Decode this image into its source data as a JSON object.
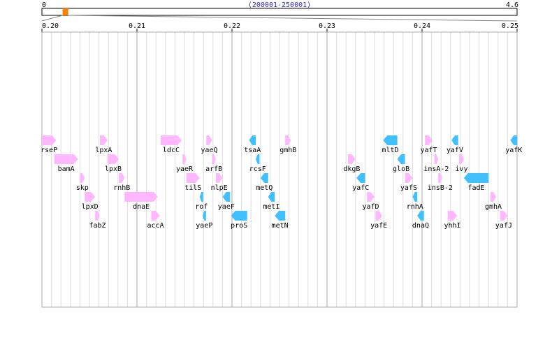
{
  "overview": {
    "start_label": "0",
    "end_label": "4.6",
    "range_label": "(200001-250001)",
    "min": 0,
    "max": 4.6,
    "highlight_start": 0.200001,
    "highlight_end": 0.250001,
    "highlight_color": "#ff8000"
  },
  "axis": {
    "min": 0.2,
    "max": 0.25,
    "major_ticks": [
      "0.20",
      "0.21",
      "0.22",
      "0.23",
      "0.24",
      "0.25"
    ],
    "minor_step": 0.001
  },
  "colors": {
    "forward": "#ffb8ff",
    "reverse": "#40c0ff",
    "grid_minor": "#dddddd",
    "grid_major": "#aaaaaa",
    "border": "#aaaaaa"
  },
  "genes": [
    {
      "name": "rseP",
      "start": 0.2,
      "end": 0.2015,
      "strand": "+",
      "row": 0
    },
    {
      "name": "bamA",
      "start": 0.2013,
      "end": 0.2038,
      "strand": "+",
      "row": 1
    },
    {
      "name": "skp",
      "start": 0.204,
      "end": 0.2045,
      "strand": "+",
      "row": 2
    },
    {
      "name": "lpxD",
      "start": 0.2045,
      "end": 0.2056,
      "strand": "+",
      "row": 3
    },
    {
      "name": "fabZ",
      "start": 0.2056,
      "end": 0.2061,
      "strand": "+",
      "row": 4
    },
    {
      "name": "lpxA",
      "start": 0.2061,
      "end": 0.2069,
      "strand": "+",
      "row": 0
    },
    {
      "name": "lpxB",
      "start": 0.2069,
      "end": 0.2081,
      "strand": "+",
      "row": 1
    },
    {
      "name": "rnhB",
      "start": 0.2081,
      "end": 0.2087,
      "strand": "+",
      "row": 2
    },
    {
      "name": "dnaE",
      "start": 0.2087,
      "end": 0.2122,
      "strand": "+",
      "row": 3
    },
    {
      "name": "accA",
      "start": 0.2115,
      "end": 0.2124,
      "strand": "+",
      "row": 4
    },
    {
      "name": "ldcC",
      "start": 0.2125,
      "end": 0.2147,
      "strand": "+",
      "row": 0
    },
    {
      "name": "yaeR",
      "start": 0.2148,
      "end": 0.2152,
      "strand": "+",
      "row": 1
    },
    {
      "name": "tilS",
      "start": 0.2152,
      "end": 0.2166,
      "strand": "+",
      "row": 2
    },
    {
      "name": "rof",
      "start": 0.2166,
      "end": 0.2169,
      "strand": "-",
      "row": 3
    },
    {
      "name": "yaeP",
      "start": 0.2169,
      "end": 0.2172,
      "strand": "-",
      "row": 4
    },
    {
      "name": "yaeQ",
      "start": 0.2173,
      "end": 0.2179,
      "strand": "+",
      "row": 0
    },
    {
      "name": "arfB",
      "start": 0.2179,
      "end": 0.2183,
      "strand": "+",
      "row": 1
    },
    {
      "name": "nlpE",
      "start": 0.2183,
      "end": 0.219,
      "strand": "+",
      "row": 2
    },
    {
      "name": "yaeF",
      "start": 0.219,
      "end": 0.2198,
      "strand": "-",
      "row": 3
    },
    {
      "name": "proS",
      "start": 0.2199,
      "end": 0.2216,
      "strand": "-",
      "row": 4
    },
    {
      "name": "tsaA",
      "start": 0.2218,
      "end": 0.2225,
      "strand": "-",
      "row": 0
    },
    {
      "name": "rcsF",
      "start": 0.2225,
      "end": 0.2229,
      "strand": "-",
      "row": 1
    },
    {
      "name": "metQ",
      "start": 0.223,
      "end": 0.2238,
      "strand": "-",
      "row": 2
    },
    {
      "name": "metI",
      "start": 0.2238,
      "end": 0.2245,
      "strand": "-",
      "row": 3
    },
    {
      "name": "metN",
      "start": 0.2245,
      "end": 0.2256,
      "strand": "-",
      "row": 4
    },
    {
      "name": "gmhB",
      "start": 0.2256,
      "end": 0.2262,
      "strand": "+",
      "row": 0
    },
    {
      "name": "dkgB",
      "start": 0.2322,
      "end": 0.233,
      "strand": "+",
      "row": 1
    },
    {
      "name": "yafC",
      "start": 0.2331,
      "end": 0.234,
      "strand": "-",
      "row": 2
    },
    {
      "name": "yafD",
      "start": 0.2342,
      "end": 0.235,
      "strand": "+",
      "row": 3
    },
    {
      "name": "yafE",
      "start": 0.2351,
      "end": 0.2358,
      "strand": "+",
      "row": 4
    },
    {
      "name": "mltD",
      "start": 0.2359,
      "end": 0.2374,
      "strand": "-",
      "row": 0
    },
    {
      "name": "gloB",
      "start": 0.2374,
      "end": 0.2382,
      "strand": "-",
      "row": 1
    },
    {
      "name": "yafS",
      "start": 0.2382,
      "end": 0.239,
      "strand": "+",
      "row": 2
    },
    {
      "name": "rnhA",
      "start": 0.239,
      "end": 0.2395,
      "strand": "-",
      "row": 3
    },
    {
      "name": "dnaQ",
      "start": 0.2395,
      "end": 0.2402,
      "strand": "-",
      "row": 4
    },
    {
      "name": "yafT",
      "start": 0.2403,
      "end": 0.2411,
      "strand": "+",
      "row": 0
    },
    {
      "name": "insA-2",
      "start": 0.2413,
      "end": 0.2417,
      "strand": "+",
      "row": 1
    },
    {
      "name": "insB-2",
      "start": 0.2417,
      "end": 0.2421,
      "strand": "+",
      "row": 2
    },
    {
      "name": "yafV",
      "start": 0.2431,
      "end": 0.2438,
      "strand": "-",
      "row": 0
    },
    {
      "name": "ivy",
      "start": 0.2439,
      "end": 0.2444,
      "strand": "+",
      "row": 1
    },
    {
      "name": "fadE",
      "start": 0.2444,
      "end": 0.247,
      "strand": "-",
      "row": 2
    },
    {
      "name": "gmhA",
      "start": 0.2472,
      "end": 0.2478,
      "strand": "+",
      "row": 3
    },
    {
      "name": "yhhI",
      "start": 0.2427,
      "end": 0.2437,
      "strand": "+",
      "row": 4
    },
    {
      "name": "yafJ",
      "start": 0.2482,
      "end": 0.249,
      "strand": "+",
      "row": 4
    },
    {
      "name": "yafK",
      "start": 0.2493,
      "end": 0.25,
      "strand": "-",
      "row": 0
    }
  ]
}
